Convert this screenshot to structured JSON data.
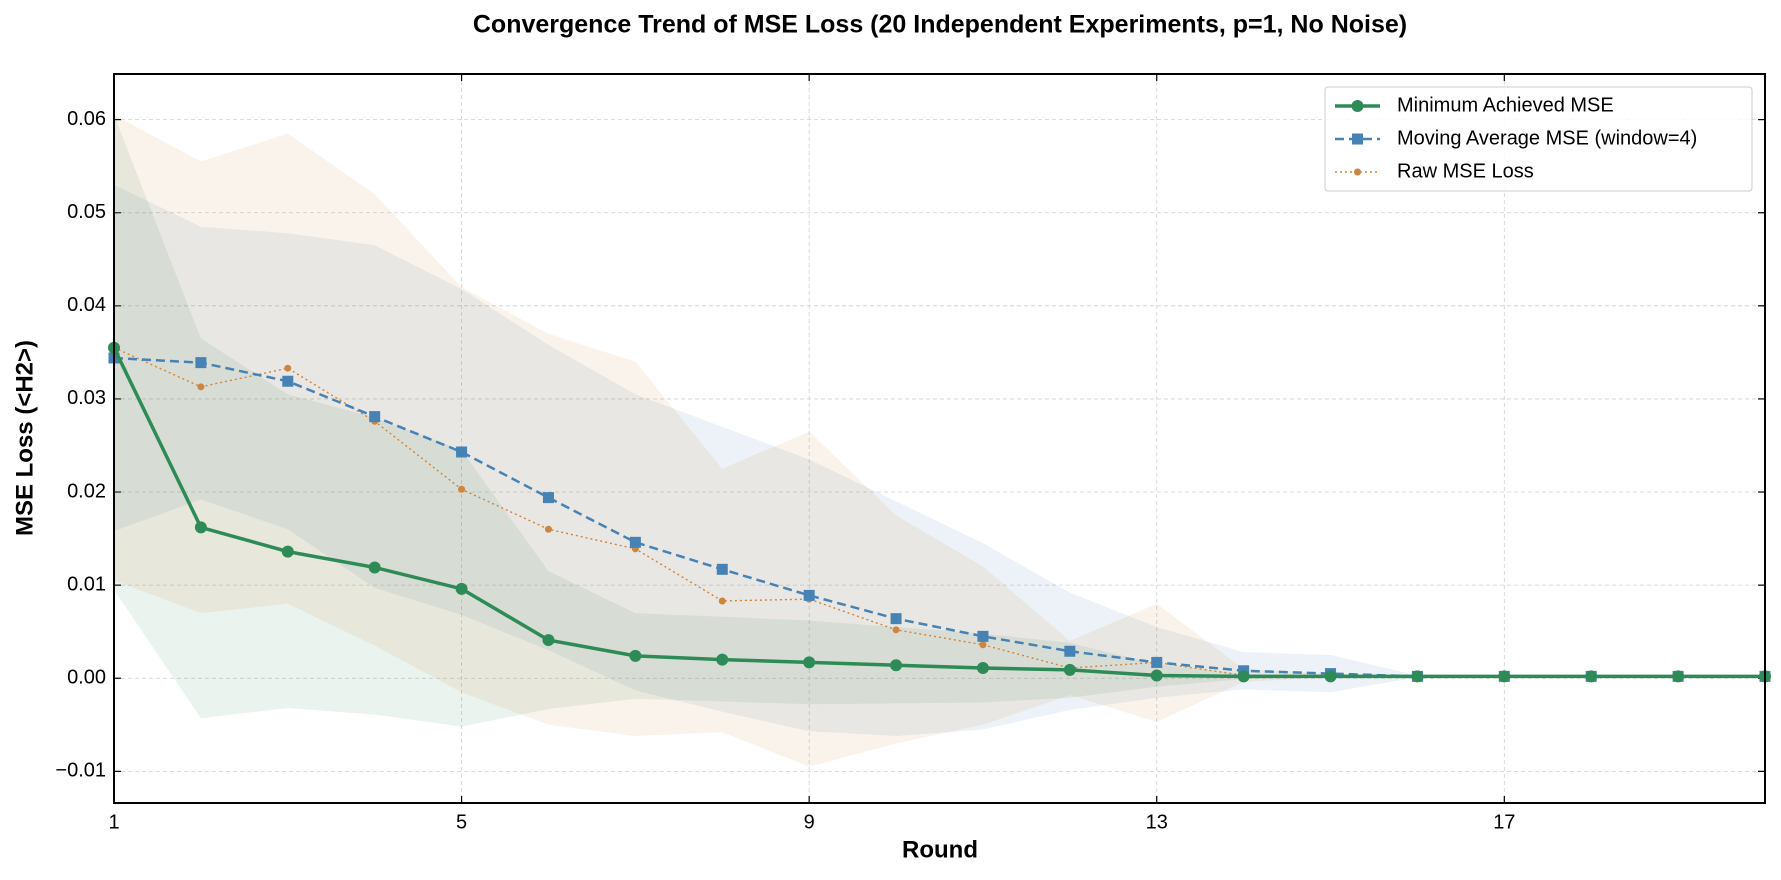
{
  "chart_data": {
    "type": "line",
    "title": "Convergence Trend of MSE Loss (20 Independent Experiments, p=1, No Noise)",
    "xlabel": "Round",
    "ylabel": "MSE Loss (<H2>)",
    "x": [
      1,
      2,
      3,
      4,
      5,
      6,
      7,
      8,
      9,
      10,
      11,
      12,
      13,
      14,
      15,
      16,
      17,
      18,
      19,
      20
    ],
    "xlim": [
      1,
      20
    ],
    "xticks": [
      1,
      5,
      9,
      13,
      17
    ],
    "ylim": [
      -0.0134,
      0.0649
    ],
    "yticks": [
      {
        "value": -0.01,
        "label": "−0.01"
      },
      {
        "value": 0,
        "label": "0.00"
      },
      0.01,
      0.02,
      0.03,
      0.04,
      0.05,
      0.06
    ],
    "grid": true,
    "legend": "upper right",
    "series": [
      {
        "name": "Minimum Achieved MSE",
        "color": "#2e8b57",
        "style": "solid",
        "marker": "circle",
        "values": [
          0.0355,
          0.0162,
          0.0136,
          0.0119,
          0.0096,
          0.0041,
          0.0024,
          0.002,
          0.0017,
          0.0014,
          0.0011,
          0.0009,
          0.0003,
          0.0002,
          0.0002,
          0.0002,
          0.0002,
          0.0002,
          0.0002,
          0.0002
        ],
        "band_upper": [
          0.0605,
          0.0365,
          0.0305,
          0.028,
          0.0245,
          0.0115,
          0.007,
          0.0066,
          0.0062,
          0.0055,
          0.0048,
          0.0038,
          0.0015,
          0.0005,
          0.0002,
          0.0002,
          0.0002,
          0.0002,
          0.0002,
          0.0002
        ],
        "band_lower": [
          0.0095,
          -0.0043,
          -0.0032,
          -0.0039,
          -0.0052,
          -0.0033,
          -0.0022,
          -0.0025,
          -0.0028,
          -0.0027,
          -0.0026,
          -0.0021,
          -0.0009,
          -0.0001,
          0.0002,
          0.0002,
          0.0002,
          0.0002,
          0.0002,
          0.0002
        ]
      },
      {
        "name": "Moving Average MSE (window=4)",
        "color": "#4682b4",
        "style": "dashed",
        "marker": "square",
        "values": [
          0.0344,
          0.0339,
          0.0319,
          0.0281,
          0.0243,
          0.0194,
          0.0146,
          0.0117,
          0.0089,
          0.0064,
          0.0045,
          0.0029,
          0.0017,
          0.0008,
          0.0005,
          0.0002,
          0.0002,
          0.0002,
          0.0002,
          0.0002
        ],
        "band_upper": [
          0.053,
          0.0485,
          0.0478,
          0.0465,
          0.0418,
          0.0358,
          0.0305,
          0.027,
          0.0235,
          0.019,
          0.0145,
          0.0092,
          0.0055,
          0.0028,
          0.0025,
          0.0003,
          0.0002,
          0.0002,
          0.0002,
          0.0002
        ],
        "band_lower": [
          0.0158,
          0.0192,
          0.016,
          0.0097,
          0.0068,
          0.003,
          -0.0013,
          -0.0036,
          -0.0057,
          -0.0062,
          -0.0055,
          -0.0034,
          -0.0021,
          -0.0012,
          -0.0015,
          0.0001,
          0.0002,
          0.0002,
          0.0002,
          0.0002
        ]
      },
      {
        "name": "Raw MSE Loss",
        "color": "#cd853f",
        "style": "dotted",
        "marker": "dot",
        "values": [
          0.0355,
          0.0313,
          0.0333,
          0.0276,
          0.0203,
          0.016,
          0.0139,
          0.0083,
          0.0085,
          0.0052,
          0.0036,
          0.0011,
          0.0017,
          0.0003,
          0.0003,
          0.0002,
          0.0002,
          0.0002,
          0.0002,
          0.0002
        ],
        "band_upper": [
          0.0605,
          0.0555,
          0.0585,
          0.052,
          0.042,
          0.037,
          0.034,
          0.0225,
          0.0265,
          0.0175,
          0.012,
          0.004,
          0.008,
          0.001,
          0.0005,
          0.0002,
          0.0002,
          0.0002,
          0.0002,
          0.0002
        ],
        "band_lower": [
          0.0105,
          0.007,
          0.008,
          0.0035,
          -0.0015,
          -0.005,
          -0.0062,
          -0.0058,
          -0.0095,
          -0.007,
          -0.005,
          -0.0018,
          -0.0047,
          -0.0004,
          0.0001,
          0.0002,
          0.0002,
          0.0002,
          0.0002,
          0.0002
        ]
      }
    ]
  }
}
